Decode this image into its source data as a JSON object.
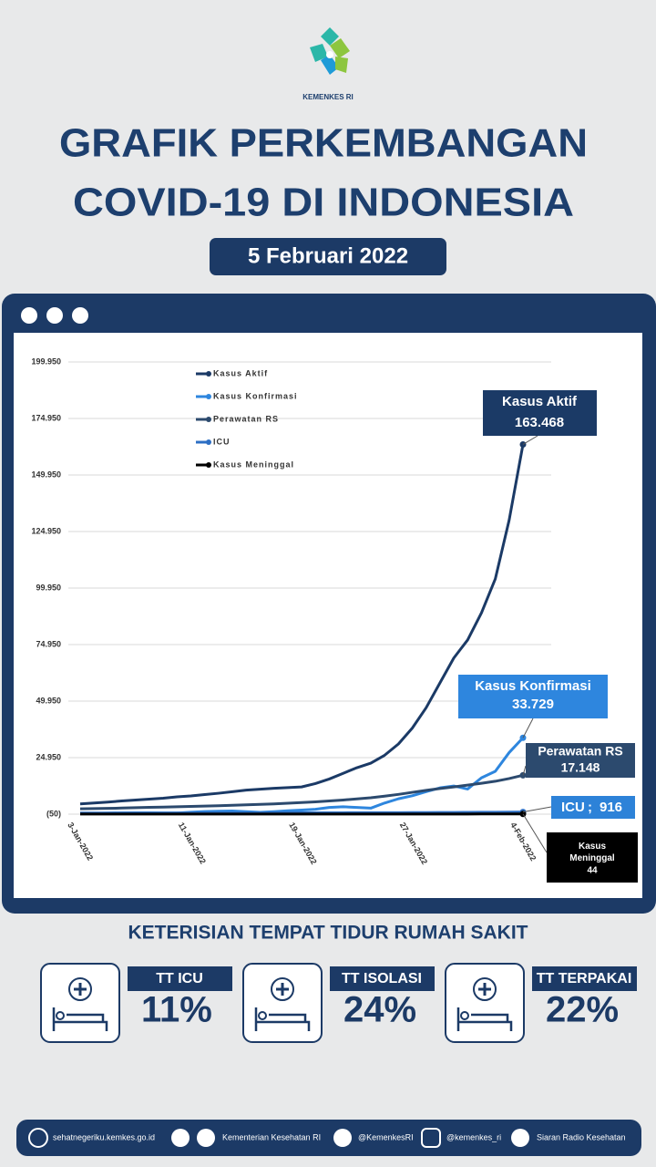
{
  "header": {
    "logo_text": "KEMENKES RI",
    "title_line_1": "GRAFIK PERKEMBANGAN",
    "title_line_2": "COVID-19 DI INDONESIA",
    "date": "5 Februari 2022"
  },
  "chart_data": {
    "type": "line",
    "categories": [
      "3-Jan-2022",
      null,
      null,
      null,
      null,
      null,
      null,
      null,
      "11-Jan-2022",
      null,
      null,
      null,
      null,
      null,
      null,
      null,
      "19-Jan-2022",
      null,
      null,
      null,
      null,
      null,
      null,
      null,
      "27-Jan-2022",
      null,
      null,
      null,
      null,
      null,
      null,
      null,
      "4-Feb-2022"
    ],
    "ylim": [
      -50,
      199950
    ],
    "yticks": [
      {
        "value": -50,
        "label": "(50)"
      },
      {
        "value": 24950,
        "label": "24.950"
      },
      {
        "value": 49950,
        "label": "49.950"
      },
      {
        "value": 74950,
        "label": "74.950"
      },
      {
        "value": 99950,
        "label": "99.950"
      },
      {
        "value": 124950,
        "label": "124.950"
      },
      {
        "value": 149950,
        "label": "149.950"
      },
      {
        "value": 174950,
        "label": "174.950"
      },
      {
        "value": 199950,
        "label": "199.950"
      }
    ],
    "grid": true,
    "legend": "upper-left",
    "series": [
      {
        "name": "Kasus Aktif",
        "color": "#1b3a66",
        "values": [
          4500,
          4900,
          5300,
          5800,
          6200,
          6600,
          7000,
          7600,
          8000,
          8600,
          9200,
          9900,
          10600,
          11000,
          11400,
          11700,
          12000,
          13500,
          15500,
          18000,
          20500,
          22500,
          26000,
          31000,
          38000,
          47000,
          58000,
          69000,
          77000,
          89000,
          104000,
          130000,
          163468
        ],
        "value_labels": [
          null,
          null,
          null,
          null,
          null,
          null,
          null,
          null,
          null,
          null,
          null,
          null,
          null,
          null,
          null,
          null,
          null,
          null,
          null,
          null,
          null,
          null,
          null,
          null,
          null,
          null,
          null,
          null,
          null,
          null,
          null,
          null,
          "163.468"
        ]
      },
      {
        "name": "Kasus Konfirmasi",
        "color": "#2e86de",
        "values": [
          265,
          299,
          404,
          528,
          572,
          533,
          529,
          479,
          802,
          1116,
          1270,
          1362,
          1054,
          772,
          1053,
          1441,
          1745,
          2116,
          2928,
          3205,
          2925,
          2604,
          4878,
          6754,
          8077,
          9905,
          11588,
          12422,
          11054,
          16021,
          18891,
          27197,
          33729
        ],
        "value_labels": [
          null,
          null,
          null,
          null,
          null,
          null,
          null,
          null,
          null,
          null,
          null,
          null,
          null,
          null,
          null,
          null,
          null,
          null,
          null,
          null,
          null,
          null,
          null,
          null,
          null,
          null,
          null,
          null,
          null,
          null,
          null,
          null,
          "33.729"
        ]
      },
      {
        "name": "Perawatan RS",
        "color": "#2c4a6e",
        "values": [
          2300,
          2400,
          2500,
          2650,
          2800,
          2950,
          3100,
          3250,
          3400,
          3550,
          3700,
          3900,
          4100,
          4300,
          4500,
          4800,
          5100,
          5400,
          5800,
          6200,
          6700,
          7200,
          7900,
          8700,
          9600,
          10500,
          11300,
          12000,
          12800,
          13600,
          14500,
          15700,
          17148
        ],
        "value_labels": [
          null,
          null,
          null,
          null,
          null,
          null,
          null,
          null,
          null,
          null,
          null,
          null,
          null,
          null,
          null,
          null,
          null,
          null,
          null,
          null,
          null,
          null,
          null,
          null,
          null,
          null,
          null,
          null,
          null,
          null,
          null,
          null,
          "17.148"
        ]
      },
      {
        "name": "ICU",
        "color": "#2d6fc4",
        "separator": ";",
        "values": [
          430,
          440,
          450,
          455,
          460,
          470,
          475,
          480,
          490,
          500,
          510,
          515,
          520,
          525,
          530,
          540,
          550,
          560,
          570,
          580,
          590,
          600,
          610,
          625,
          640,
          660,
          690,
          720,
          750,
          790,
          830,
          870,
          916
        ]
      },
      {
        "name": "Kasus Meninggal",
        "color": "#000000",
        "values": [
          5,
          4,
          6,
          3,
          5,
          7,
          4,
          6,
          5,
          3,
          4,
          7,
          6,
          5,
          4,
          7,
          8,
          6,
          9,
          7,
          5,
          10,
          12,
          11,
          14,
          16,
          17,
          20,
          25,
          26,
          27,
          30,
          44
        ]
      }
    ]
  },
  "bed_occupancy": {
    "title": "KETERISIAN TEMPAT TIDUR RUMAH SAKIT",
    "cards": [
      {
        "label": "TT ICU",
        "value": "11%"
      },
      {
        "label": "TT ISOLASI",
        "value": "24%"
      },
      {
        "label": "TT TERPAKAI",
        "value": "22%"
      }
    ]
  },
  "footer": {
    "website": "sehatnegeriku.kemkes.go.id",
    "facebook_youtube": "Kementerian Kesehatan RI",
    "twitter": "@KemenkesRI",
    "instagram": "@kemenkes_ri",
    "radio": "Siaran Radio Kesehatan"
  }
}
